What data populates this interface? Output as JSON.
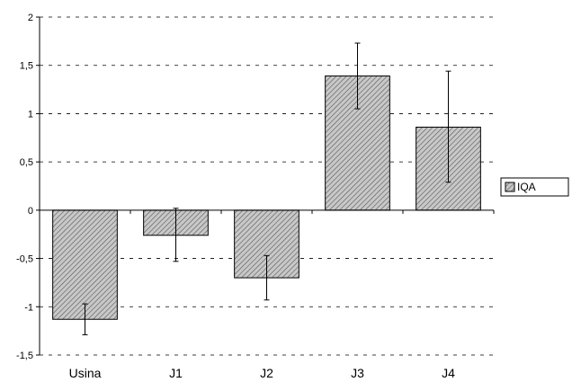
{
  "chart_data": {
    "type": "bar",
    "title": "",
    "xlabel": "",
    "ylabel": "",
    "ylim": [
      -1.5,
      2
    ],
    "yticks": [
      -1.5,
      -1,
      -0.5,
      0,
      0.5,
      1,
      1.5,
      2
    ],
    "ytick_labels": [
      "-1,5",
      "-1",
      "-0,5",
      "0",
      "0,5",
      "1",
      "1,5",
      "2"
    ],
    "grid": "horizontal dashed",
    "legend_position": "right",
    "categories": [
      "Usina",
      "J1",
      "J2",
      "J3",
      "J4"
    ],
    "series": [
      {
        "name": "IQA",
        "values": [
          -1.13,
          -0.26,
          -0.7,
          1.39,
          0.86
        ],
        "error_low": [
          -1.29,
          -0.53,
          -0.93,
          1.05,
          0.29
        ],
        "error_high": [
          -0.97,
          0.02,
          -0.47,
          1.73,
          1.44
        ],
        "fill": "#bfbfbf",
        "hatch": "#5a5a5a"
      }
    ]
  }
}
